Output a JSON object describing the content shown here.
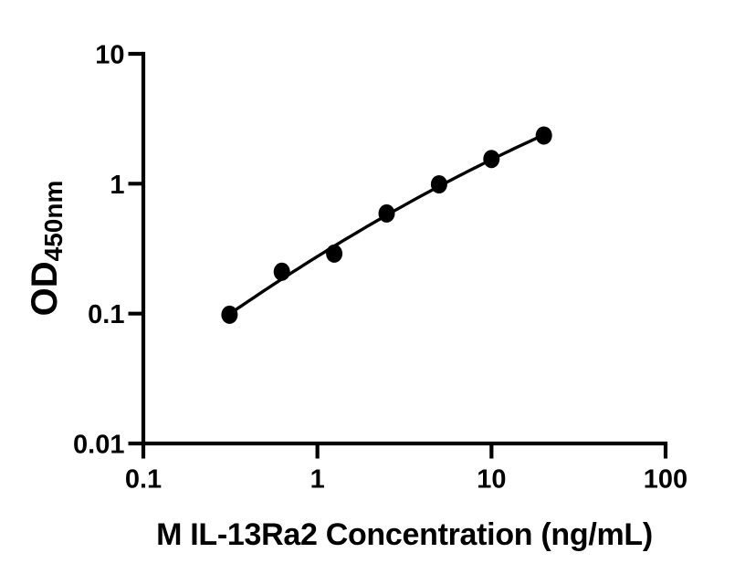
{
  "page": {
    "background": "#ffffff"
  },
  "chart_data": {
    "type": "scatter",
    "title": "",
    "xlabel": "M IL-13Ra2 Concentration (ng/mL)",
    "ylabel_main": "OD",
    "ylabel_sub": "450nm",
    "x_scale": "log10",
    "y_scale": "log10",
    "xlim": [
      0.1,
      100
    ],
    "ylim": [
      0.01,
      10
    ],
    "x_ticks": [
      0.1,
      1,
      10,
      100
    ],
    "x_tick_labels": [
      "0.1",
      "1",
      "10",
      "100"
    ],
    "y_ticks": [
      0.01,
      0.1,
      1,
      10
    ],
    "y_tick_labels": [
      "0.01",
      "0.1",
      "1",
      "10"
    ],
    "grid": "off",
    "legend": "none",
    "series": [
      {
        "name": "standard-curve-points",
        "marker": "filled-circle",
        "color": "#000000",
        "x": [
          0.3125,
          0.625,
          1.25,
          2.5,
          5,
          10,
          20
        ],
        "y": [
          0.098,
          0.21,
          0.29,
          0.59,
          0.99,
          1.55,
          2.35
        ]
      }
    ],
    "fit_line": {
      "type": "quadratic_loglog",
      "description": "log10(OD) = a + b*u + c*u^2, u = log10(conc)",
      "a": -0.56,
      "b": 0.834,
      "c": -0.088,
      "x_start": 0.3125,
      "x_end": 20,
      "color": "#000000"
    },
    "colors": {
      "axis": "#000000",
      "marker": "#000000",
      "line": "#000000",
      "background": "#ffffff"
    }
  }
}
